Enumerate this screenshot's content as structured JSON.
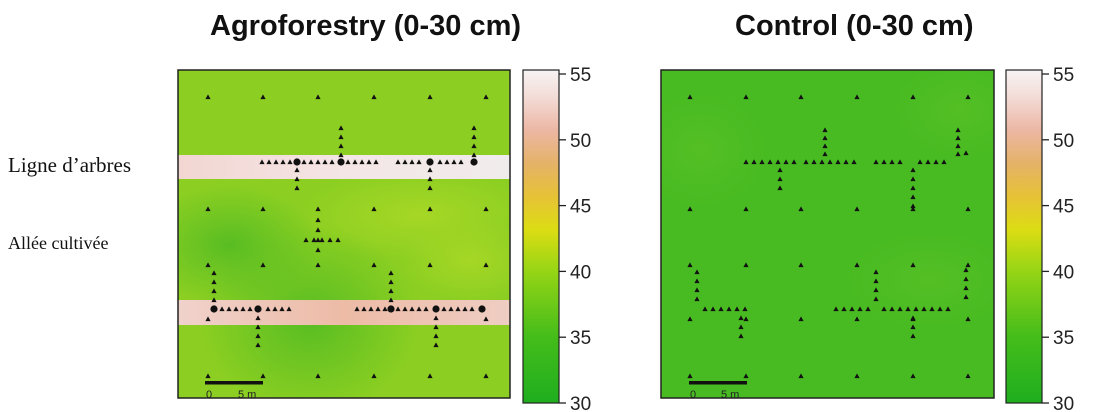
{
  "left_annotations": {
    "tree_row": "Ligne d’arbres",
    "alley": "Allée cultivée"
  },
  "colors": {
    "scale_low": "#23b023",
    "scale_mid_low": "#8ed318",
    "scale_mid": "#e5dd15",
    "scale_mid_high": "#e7b85a",
    "scale_high": "#edbcaa",
    "scale_top": "#f6f3f3",
    "marker": "#111111"
  },
  "chart_data": [
    {
      "type": "heatmap",
      "title": "Agroforestry (0-30 cm)",
      "scale": {
        "min": 30,
        "max": 55,
        "ticks": [
          30,
          35,
          40,
          45,
          50,
          55
        ],
        "tick_labels": [
          "30",
          "35",
          "40",
          "45",
          "50",
          "55"
        ]
      },
      "scale_bar": {
        "labels": [
          "0",
          "5 m"
        ]
      },
      "background_value_range": [
        37,
        41
      ],
      "bands": [
        {
          "name": "tree row upper",
          "value": 52
        },
        {
          "name": "tree row lower",
          "value": 49
        }
      ],
      "markers": [
        "sampling point (triangle)",
        "tree (circle)"
      ]
    },
    {
      "type": "heatmap",
      "title": "Control (0-30 cm)",
      "scale": {
        "min": 30,
        "max": 55,
        "ticks": [
          30,
          35,
          40,
          45,
          50,
          55
        ],
        "tick_labels": [
          "30",
          "35",
          "40",
          "45",
          "50",
          "55"
        ]
      },
      "scale_bar": {
        "labels": [
          "0",
          "5 m"
        ]
      },
      "background_value_range": [
        36,
        38
      ],
      "bands": [],
      "markers": [
        "sampling point (triangle)"
      ]
    }
  ]
}
